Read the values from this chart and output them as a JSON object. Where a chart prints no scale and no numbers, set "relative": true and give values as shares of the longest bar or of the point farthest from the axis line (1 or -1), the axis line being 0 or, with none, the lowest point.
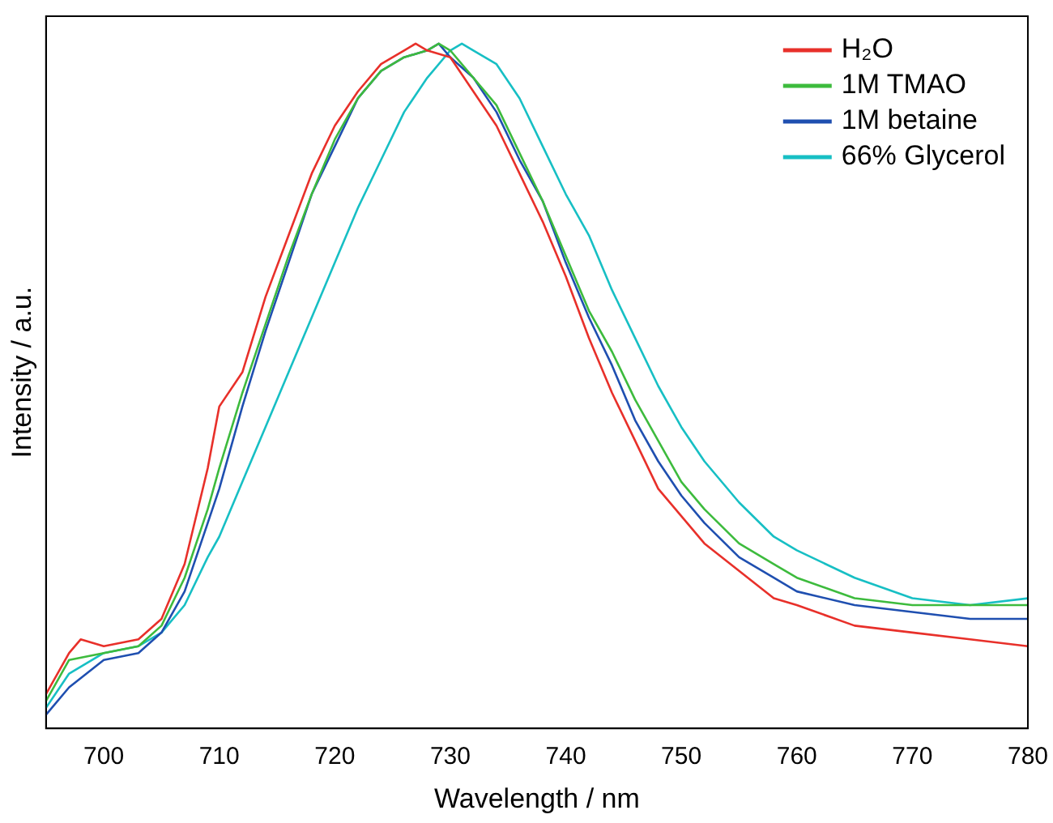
{
  "chart_data": {
    "type": "line",
    "xlabel": "Wavelength / nm",
    "ylabel": "Intensity / a.u.",
    "relative": true,
    "xlim": [
      695,
      780
    ],
    "xticks": [
      700,
      710,
      720,
      730,
      740,
      750,
      760,
      770,
      780
    ],
    "tick_labels": "x",
    "legend": "top right",
    "marker": "none",
    "line_style": "solid",
    "grid": false,
    "x": [
      695,
      697,
      698,
      700,
      703,
      705,
      707,
      709,
      710,
      712,
      714,
      716,
      718,
      720,
      722,
      724,
      726,
      727,
      728,
      730,
      732,
      734,
      736,
      738,
      740,
      742,
      744,
      746,
      748,
      750,
      752,
      755,
      758,
      760,
      765,
      770,
      775,
      780
    ],
    "series": [
      {
        "name": "H₂O",
        "color": "#e8302a",
        "values": [
          0.05,
          0.11,
          0.13,
          0.12,
          0.13,
          0.16,
          0.24,
          0.38,
          0.47,
          0.52,
          0.63,
          0.72,
          0.81,
          0.88,
          0.93,
          0.97,
          0.99,
          1.0,
          0.99,
          0.98,
          0.93,
          0.88,
          0.81,
          0.74,
          0.66,
          0.57,
          0.49,
          0.42,
          0.35,
          0.31,
          0.27,
          0.23,
          0.19,
          0.18,
          0.15,
          0.14,
          0.13,
          0.12
        ]
      },
      {
        "name": "1M TMAO",
        "color": "#3dbb3d",
        "x": [
          695,
          697,
          700,
          703,
          705,
          707,
          709,
          710,
          712,
          714,
          716,
          718,
          720,
          722,
          724,
          726,
          728,
          729,
          730,
          732,
          734,
          736,
          738,
          740,
          742,
          744,
          746,
          748,
          750,
          752,
          755,
          758,
          760,
          765,
          770,
          775,
          780
        ],
        "values": [
          0.04,
          0.1,
          0.11,
          0.12,
          0.15,
          0.22,
          0.32,
          0.38,
          0.49,
          0.59,
          0.69,
          0.78,
          0.86,
          0.92,
          0.96,
          0.98,
          0.99,
          1.0,
          0.99,
          0.95,
          0.91,
          0.84,
          0.77,
          0.69,
          0.61,
          0.55,
          0.48,
          0.42,
          0.36,
          0.32,
          0.27,
          0.24,
          0.22,
          0.19,
          0.18,
          0.18,
          0.18
        ]
      },
      {
        "name": "1M betaine",
        "color": "#1f4fb0",
        "x": [
          695,
          697,
          700,
          703,
          705,
          707,
          709,
          710,
          712,
          714,
          716,
          718,
          720,
          722,
          724,
          726,
          728,
          729,
          730,
          732,
          734,
          736,
          738,
          740,
          742,
          744,
          746,
          748,
          750,
          752,
          755,
          758,
          760,
          765,
          770,
          775,
          780
        ],
        "values": [
          0.02,
          0.06,
          0.1,
          0.11,
          0.14,
          0.2,
          0.3,
          0.35,
          0.47,
          0.58,
          0.68,
          0.78,
          0.85,
          0.92,
          0.96,
          0.98,
          0.99,
          1.0,
          0.98,
          0.95,
          0.9,
          0.83,
          0.77,
          0.68,
          0.6,
          0.53,
          0.45,
          0.39,
          0.34,
          0.3,
          0.25,
          0.22,
          0.2,
          0.18,
          0.17,
          0.16,
          0.16
        ]
      },
      {
        "name": "66% Glycerol",
        "color": "#17bfc4",
        "x": [
          695,
          697,
          700,
          703,
          705,
          707,
          709,
          710,
          712,
          714,
          716,
          718,
          720,
          722,
          724,
          726,
          728,
          730,
          731,
          732,
          734,
          736,
          738,
          740,
          742,
          744,
          746,
          748,
          750,
          752,
          755,
          758,
          760,
          765,
          770,
          775,
          780
        ],
        "values": [
          0.03,
          0.08,
          0.11,
          0.12,
          0.14,
          0.18,
          0.25,
          0.28,
          0.36,
          0.44,
          0.52,
          0.6,
          0.68,
          0.76,
          0.83,
          0.9,
          0.95,
          0.99,
          1.0,
          0.99,
          0.97,
          0.92,
          0.85,
          0.78,
          0.72,
          0.64,
          0.57,
          0.5,
          0.44,
          0.39,
          0.33,
          0.28,
          0.26,
          0.22,
          0.19,
          0.18,
          0.19
        ]
      }
    ]
  }
}
